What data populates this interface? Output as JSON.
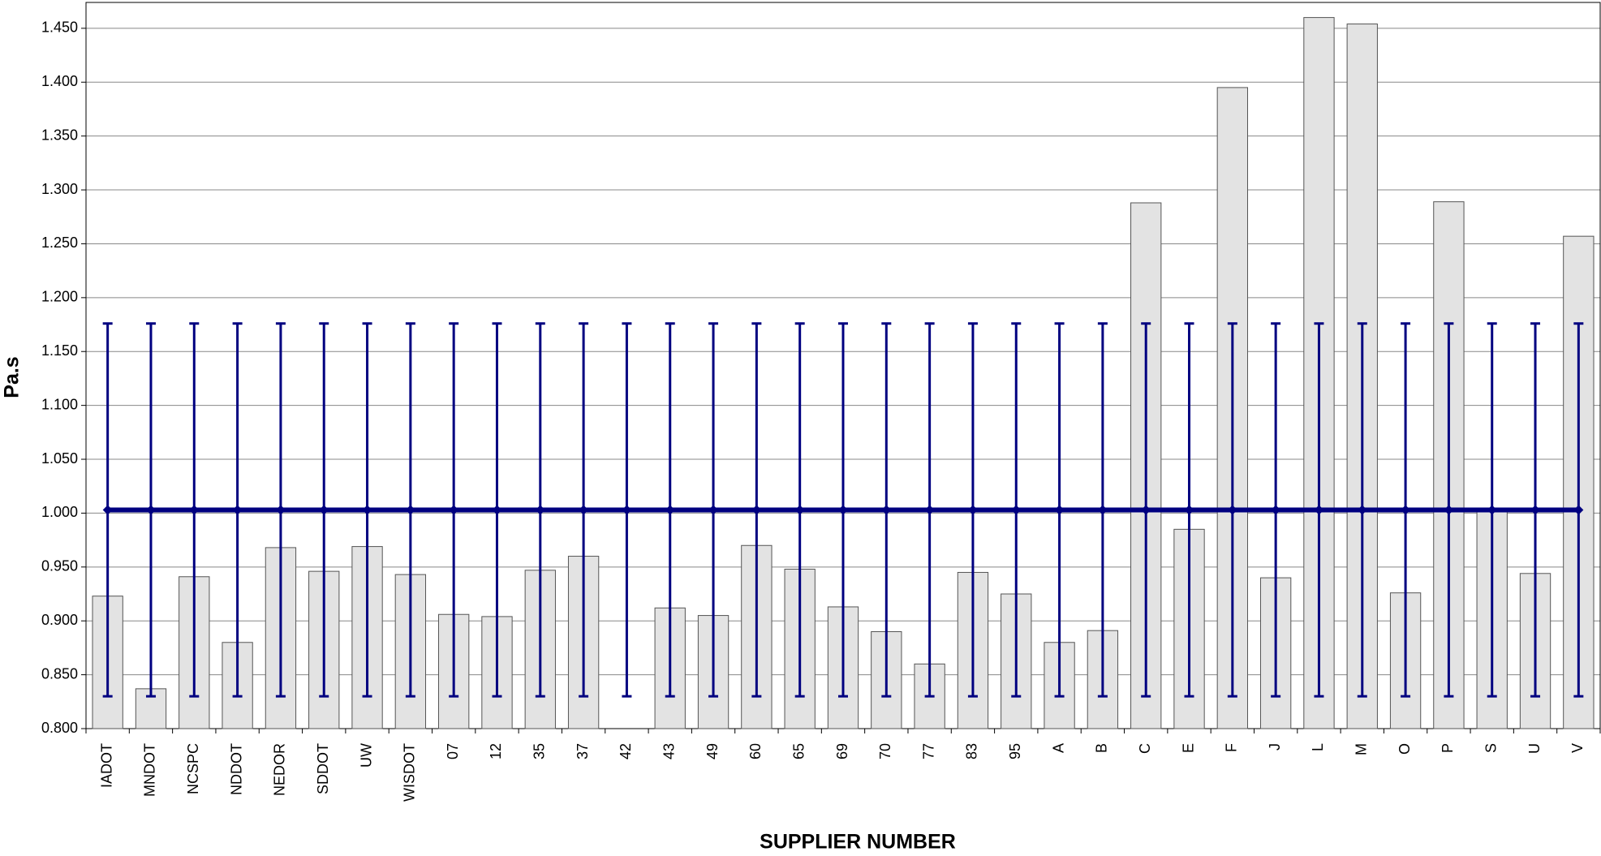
{
  "chart_data": {
    "type": "bar",
    "x_label": "SUPPLIER NUMBER",
    "y_label": "Pa.s",
    "categories": [
      "IADOT",
      "MNDOT",
      "NCSPC",
      "NDDOT",
      "NEDOR",
      "SDDOT",
      "UW",
      "WISDOT",
      "07",
      "12",
      "35",
      "37",
      "42",
      "43",
      "49",
      "60",
      "65",
      "69",
      "70",
      "77",
      "83",
      "95",
      "A",
      "B",
      "C",
      "E",
      "F",
      "J",
      "L",
      "M",
      "O",
      "P",
      "S",
      "U",
      "V"
    ],
    "values": [
      0.923,
      0.837,
      0.941,
      0.88,
      0.968,
      0.946,
      0.969,
      0.943,
      0.906,
      0.904,
      0.947,
      0.96,
      null,
      0.912,
      0.905,
      0.97,
      0.948,
      0.913,
      0.89,
      0.86,
      0.945,
      0.925,
      0.88,
      0.891,
      1.288,
      0.985,
      1.395,
      0.94,
      1.46,
      1.454,
      0.926,
      1.289,
      1.002,
      0.944,
      1.257
    ],
    "color": "#e3e3e3",
    "mean_values": [
      1.003,
      1.003,
      1.003,
      1.003,
      1.003,
      1.003,
      1.003,
      1.003,
      1.003,
      1.003,
      1.003,
      1.003,
      1.003,
      1.003,
      1.003,
      1.003,
      1.003,
      1.003,
      1.003,
      1.003,
      1.003,
      1.003,
      1.003,
      1.003,
      1.003,
      1.003,
      1.003,
      1.003,
      1.003,
      1.003,
      1.003,
      1.003,
      1.003,
      1.003,
      1.003
    ],
    "mean_errors": [
      0.173,
      0.173,
      0.173,
      0.173,
      0.173,
      0.173,
      0.173,
      0.173,
      0.173,
      0.173,
      0.173,
      0.173,
      0.173,
      0.173,
      0.173,
      0.173,
      0.173,
      0.173,
      0.173,
      0.173,
      0.173,
      0.173,
      0.173,
      0.173,
      0.173,
      0.173,
      0.173,
      0.173,
      0.173,
      0.173,
      0.173,
      0.173,
      0.173,
      0.173,
      0.173
    ],
    "mean_color": "#000080",
    "ylim": [
      0.8,
      1.474
    ],
    "yticks": [
      {
        "value": 0.8,
        "label": "0.800"
      },
      {
        "value": 0.85,
        "label": "0.850"
      },
      {
        "value": 0.9,
        "label": "0.900"
      },
      {
        "value": 0.95,
        "label": "0.950"
      },
      {
        "value": 1.0,
        "label": "1.000"
      },
      {
        "value": 1.05,
        "label": "1.050"
      },
      {
        "value": 1.1,
        "label": "1.100"
      },
      {
        "value": 1.15,
        "label": "1.150"
      },
      {
        "value": 1.2,
        "label": "1.200"
      },
      {
        "value": 1.25,
        "label": "1.250"
      },
      {
        "value": 1.3,
        "label": "1.300"
      },
      {
        "value": 1.35,
        "label": "1.350"
      },
      {
        "value": 1.4,
        "label": "1.400"
      },
      {
        "value": 1.45,
        "label": "1.450"
      }
    ],
    "grid": true
  }
}
